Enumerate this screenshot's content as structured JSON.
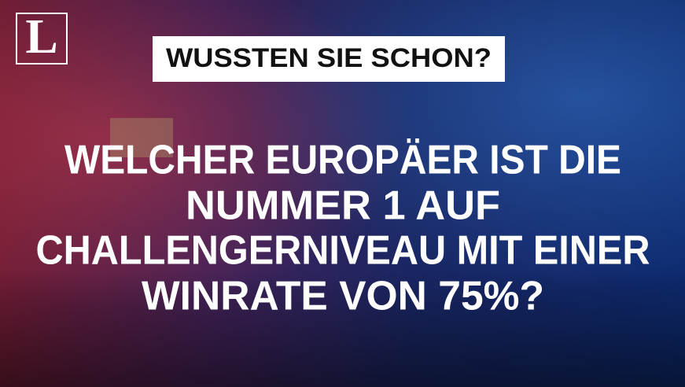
{
  "logo": "L",
  "header": "WUSSTEN SIE SCHON?",
  "question": [
    "WELCHER EUROPÄER IST DIE",
    "NUMMER 1 AUF",
    "CHALLENGERNIVEAU MIT EINER",
    "WINRATE VON 75%?"
  ]
}
